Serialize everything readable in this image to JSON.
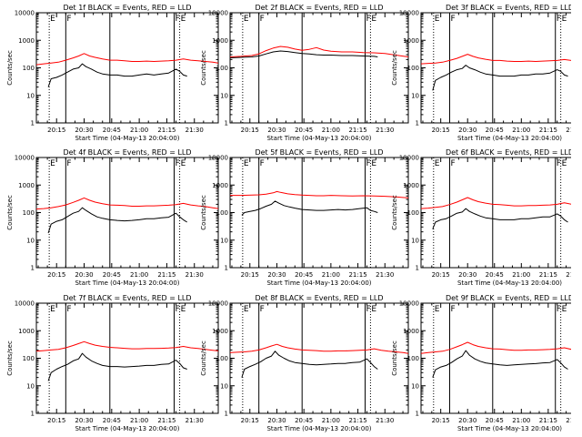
{
  "common": {
    "x_tick_labels": [
      "20:15",
      "20:30",
      "20:45",
      "21:00",
      "21:15",
      "21:30"
    ],
    "x_tick_minutes": [
      15,
      30,
      45,
      60,
      75,
      90
    ],
    "xlim_minutes_after_20h": [
      4,
      103
    ],
    "xlabel": "Start Time (04-May-13 20:04:00)",
    "ylabel": "Counts/sec",
    "y_tick_labels": [
      "1",
      "10",
      "100",
      "1000",
      "10000"
    ],
    "ylim": [
      1,
      10000
    ],
    "y_scale": "log",
    "marker_lines": [
      {
        "minute": 11,
        "style": "dotted",
        "label": "E"
      },
      {
        "minute": 20,
        "style": "solid",
        "label": "F"
      },
      {
        "minute": 44,
        "style": "solid",
        "label": ""
      },
      {
        "minute": 79,
        "style": "solid",
        "label": "F"
      },
      {
        "minute": 82,
        "style": "dotted",
        "label": "E"
      }
    ],
    "colors": {
      "events": "#000000",
      "lld": "#ff0000",
      "axes": "#000000"
    }
  },
  "chart_data": [
    {
      "type": "line",
      "title": "Det 1f BLACK = Events, RED = LLD",
      "series": [
        {
          "name": "Events",
          "color": "#000000",
          "x": [
            10.5,
            12,
            15,
            18,
            21,
            24,
            27,
            29,
            31,
            34,
            37,
            40,
            44,
            48,
            52,
            56,
            60,
            64,
            68,
            72,
            76,
            80,
            82,
            84,
            86
          ],
          "y": [
            20,
            40,
            45,
            55,
            70,
            90,
            100,
            140,
            110,
            90,
            70,
            60,
            55,
            55,
            50,
            50,
            55,
            60,
            55,
            60,
            65,
            90,
            75,
            55,
            50
          ]
        },
        {
          "name": "LLD",
          "color": "#ff0000",
          "x": [
            4,
            8,
            12,
            16,
            20,
            24,
            27,
            30,
            33,
            36,
            40,
            44,
            48,
            52,
            56,
            60,
            64,
            68,
            72,
            76,
            80,
            84,
            88,
            92,
            96,
            100,
            103
          ],
          "y": [
            130,
            140,
            150,
            160,
            190,
            230,
            270,
            330,
            270,
            240,
            210,
            190,
            190,
            180,
            170,
            170,
            175,
            170,
            175,
            180,
            190,
            210,
            190,
            180,
            170,
            160,
            150
          ]
        }
      ]
    },
    {
      "type": "line",
      "title": "Det 2f BLACK = Events, RED = LLD",
      "series": [
        {
          "name": "Events",
          "color": "#000000",
          "x": [
            4,
            10,
            16,
            20,
            24,
            28,
            32,
            36,
            40,
            44,
            48,
            52,
            56,
            60,
            66,
            72,
            78,
            84,
            86
          ],
          "y": [
            230,
            240,
            250,
            270,
            320,
            380,
            410,
            390,
            360,
            330,
            320,
            300,
            290,
            290,
            280,
            280,
            270,
            260,
            250
          ]
        },
        {
          "name": "LLD",
          "color": "#ff0000",
          "x": [
            4,
            10,
            16,
            20,
            24,
            28,
            32,
            36,
            40,
            44,
            48,
            52,
            56,
            60,
            66,
            72,
            78,
            84,
            90,
            96,
            103
          ],
          "y": [
            250,
            260,
            280,
            320,
            420,
            520,
            600,
            560,
            480,
            430,
            470,
            540,
            440,
            400,
            380,
            380,
            360,
            350,
            330,
            290,
            250
          ]
        }
      ]
    },
    {
      "type": "line",
      "title": "Det 3f BLACK = Events, RED = LLD",
      "series": [
        {
          "name": "Events",
          "color": "#000000",
          "x": [
            10.5,
            12,
            15,
            18,
            21,
            24,
            27,
            29,
            31,
            34,
            37,
            40,
            44,
            48,
            52,
            56,
            60,
            64,
            68,
            72,
            76,
            80,
            82,
            84,
            86
          ],
          "y": [
            15,
            35,
            45,
            55,
            70,
            85,
            95,
            125,
            100,
            85,
            70,
            60,
            55,
            50,
            50,
            50,
            55,
            55,
            60,
            60,
            65,
            85,
            75,
            55,
            50
          ]
        },
        {
          "name": "LLD",
          "color": "#ff0000",
          "x": [
            4,
            8,
            12,
            16,
            20,
            24,
            27,
            30,
            33,
            36,
            40,
            44,
            48,
            52,
            56,
            60,
            64,
            68,
            72,
            76,
            80,
            84,
            88,
            92,
            96,
            100,
            103
          ],
          "y": [
            140,
            145,
            150,
            160,
            185,
            220,
            260,
            310,
            260,
            230,
            205,
            185,
            185,
            175,
            170,
            170,
            175,
            170,
            175,
            180,
            185,
            200,
            185,
            175,
            165,
            150,
            140
          ]
        }
      ]
    },
    {
      "type": "line",
      "title": "Det 4f BLACK = Events, RED = LLD",
      "series": [
        {
          "name": "Events",
          "color": "#000000",
          "x": [
            10.5,
            12,
            15,
            18,
            21,
            24,
            27,
            29,
            31,
            34,
            37,
            40,
            44,
            48,
            52,
            56,
            60,
            64,
            68,
            72,
            76,
            80,
            82,
            84,
            86
          ],
          "y": [
            18,
            38,
            48,
            55,
            72,
            95,
            110,
            150,
            120,
            90,
            70,
            62,
            55,
            52,
            50,
            52,
            55,
            60,
            60,
            65,
            68,
            95,
            70,
            55,
            45
          ]
        },
        {
          "name": "LLD",
          "color": "#ff0000",
          "x": [
            4,
            8,
            12,
            16,
            20,
            24,
            27,
            30,
            33,
            36,
            40,
            44,
            48,
            52,
            56,
            60,
            64,
            68,
            72,
            76,
            80,
            84,
            88,
            92,
            96,
            100,
            103
          ],
          "y": [
            135,
            140,
            150,
            165,
            190,
            235,
            280,
            340,
            280,
            240,
            210,
            190,
            185,
            180,
            170,
            170,
            175,
            175,
            180,
            185,
            195,
            215,
            190,
            175,
            165,
            150,
            140
          ]
        }
      ]
    },
    {
      "type": "line",
      "title": "Det 5f BLACK = Events, RED = LLD",
      "series": [
        {
          "name": "Events",
          "color": "#000000",
          "x": [
            10.5,
            12,
            15,
            18,
            21,
            24,
            27,
            29,
            31,
            34,
            37,
            40,
            44,
            48,
            52,
            56,
            60,
            64,
            68,
            72,
            76,
            80,
            82,
            84,
            86
          ],
          "y": [
            80,
            100,
            110,
            120,
            140,
            170,
            200,
            260,
            220,
            180,
            160,
            145,
            130,
            125,
            120,
            120,
            125,
            130,
            125,
            130,
            140,
            150,
            120,
            110,
            100
          ]
        },
        {
          "name": "LLD",
          "color": "#ff0000",
          "x": [
            4,
            10,
            16,
            20,
            24,
            28,
            30,
            32,
            36,
            40,
            44,
            48,
            52,
            56,
            60,
            66,
            72,
            78,
            84,
            90,
            96,
            103
          ],
          "y": [
            420,
            420,
            430,
            440,
            470,
            520,
            580,
            540,
            480,
            450,
            430,
            420,
            410,
            410,
            420,
            410,
            400,
            410,
            400,
            390,
            370,
            340
          ]
        }
      ]
    },
    {
      "type": "line",
      "title": "Det 6f BLACK = Events, RED = LLD",
      "series": [
        {
          "name": "Events",
          "color": "#000000",
          "x": [
            10.5,
            12,
            15,
            18,
            21,
            24,
            27,
            29,
            31,
            34,
            37,
            40,
            44,
            48,
            52,
            56,
            60,
            64,
            68,
            72,
            76,
            80,
            82,
            84,
            86
          ],
          "y": [
            25,
            45,
            55,
            60,
            75,
            95,
            105,
            140,
            110,
            90,
            75,
            65,
            60,
            55,
            55,
            55,
            60,
            60,
            65,
            70,
            70,
            90,
            75,
            55,
            45
          ]
        },
        {
          "name": "LLD",
          "color": "#ff0000",
          "x": [
            4,
            8,
            12,
            16,
            20,
            24,
            27,
            30,
            33,
            36,
            40,
            44,
            48,
            52,
            56,
            60,
            64,
            68,
            72,
            76,
            80,
            84,
            88,
            92,
            96,
            100,
            103
          ],
          "y": [
            140,
            145,
            155,
            165,
            195,
            240,
            290,
            350,
            290,
            250,
            220,
            200,
            195,
            185,
            175,
            175,
            180,
            180,
            185,
            190,
            200,
            225,
            200,
            185,
            170,
            155,
            145
          ]
        }
      ]
    },
    {
      "type": "line",
      "title": "Det 7f BLACK = Events, RED = LLD",
      "series": [
        {
          "name": "Events",
          "color": "#000000",
          "x": [
            10.5,
            12,
            15,
            18,
            21,
            24,
            27,
            29,
            31,
            34,
            37,
            40,
            44,
            48,
            52,
            56,
            60,
            64,
            68,
            72,
            76,
            80,
            82,
            84,
            86
          ],
          "y": [
            15,
            30,
            40,
            50,
            60,
            80,
            95,
            150,
            110,
            80,
            65,
            55,
            50,
            50,
            48,
            50,
            52,
            55,
            55,
            60,
            62,
            85,
            65,
            45,
            40
          ]
        },
        {
          "name": "LLD",
          "color": "#ff0000",
          "x": [
            4,
            8,
            12,
            16,
            20,
            24,
            27,
            30,
            33,
            36,
            40,
            44,
            48,
            52,
            56,
            60,
            64,
            68,
            72,
            76,
            80,
            84,
            88,
            92,
            96,
            100,
            103
          ],
          "y": [
            180,
            190,
            200,
            210,
            240,
            290,
            340,
            400,
            340,
            300,
            270,
            250,
            240,
            230,
            220,
            220,
            225,
            225,
            230,
            235,
            245,
            270,
            240,
            225,
            210,
            195,
            185
          ]
        }
      ]
    },
    {
      "type": "line",
      "title": "Det 8f BLACK = Events, RED = LLD",
      "series": [
        {
          "name": "Events",
          "color": "#000000",
          "x": [
            10.5,
            12,
            15,
            18,
            21,
            24,
            27,
            29,
            31,
            34,
            37,
            40,
            44,
            48,
            52,
            56,
            60,
            64,
            68,
            72,
            76,
            80,
            82,
            84,
            86
          ],
          "y": [
            20,
            40,
            50,
            60,
            75,
            100,
            120,
            180,
            130,
            100,
            80,
            70,
            65,
            60,
            58,
            60,
            62,
            65,
            65,
            70,
            72,
            95,
            70,
            50,
            40
          ]
        },
        {
          "name": "LLD",
          "color": "#ff0000",
          "x": [
            4,
            8,
            12,
            16,
            20,
            24,
            27,
            30,
            33,
            36,
            40,
            44,
            48,
            52,
            56,
            60,
            64,
            68,
            72,
            76,
            80,
            84,
            88,
            92,
            96,
            100,
            103
          ],
          "y": [
            160,
            165,
            170,
            180,
            200,
            240,
            280,
            320,
            270,
            240,
            215,
            200,
            195,
            190,
            180,
            180,
            185,
            185,
            190,
            195,
            200,
            220,
            195,
            180,
            170,
            160,
            150
          ]
        }
      ]
    },
    {
      "type": "line",
      "title": "Det 9f BLACK = Events, RED = LLD",
      "series": [
        {
          "name": "Events",
          "color": "#000000",
          "x": [
            10.5,
            12,
            15,
            18,
            21,
            24,
            27,
            29,
            31,
            34,
            37,
            40,
            44,
            48,
            52,
            56,
            60,
            64,
            68,
            72,
            76,
            80,
            82,
            84,
            86
          ],
          "y": [
            20,
            38,
            48,
            55,
            70,
            95,
            120,
            190,
            130,
            95,
            78,
            68,
            62,
            58,
            55,
            58,
            60,
            62,
            64,
            68,
            70,
            90,
            68,
            48,
            40
          ]
        },
        {
          "name": "LLD",
          "color": "#ff0000",
          "x": [
            4,
            8,
            12,
            16,
            20,
            24,
            27,
            30,
            33,
            36,
            40,
            44,
            48,
            52,
            56,
            60,
            64,
            68,
            72,
            76,
            80,
            84,
            88,
            92,
            96,
            100,
            103
          ],
          "y": [
            150,
            160,
            170,
            180,
            210,
            260,
            310,
            380,
            310,
            270,
            240,
            220,
            215,
            205,
            195,
            195,
            200,
            200,
            205,
            210,
            220,
            240,
            210,
            195,
            180,
            165,
            155
          ]
        }
      ]
    }
  ]
}
